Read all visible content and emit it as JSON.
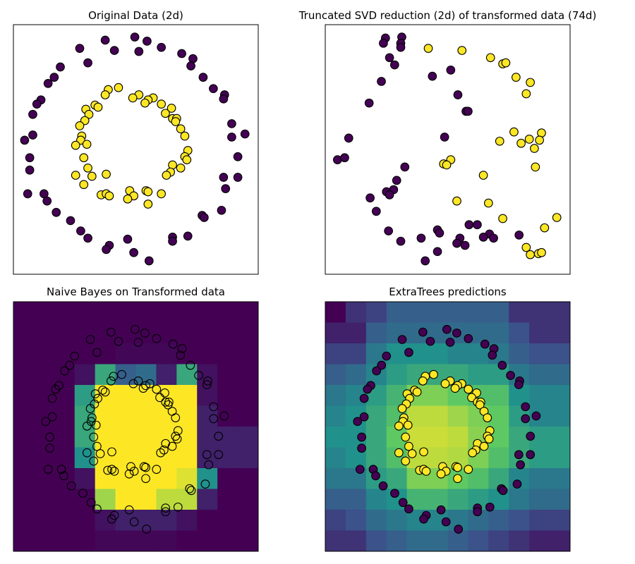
{
  "chart_data": [
    {
      "type": "scatter",
      "title": "Original Data (2d)",
      "xlim": [
        -1.2,
        1.2
      ],
      "ylim": [
        -1.21,
        1.21
      ],
      "grid": false,
      "ticks": false,
      "marker_style": "filled",
      "series": [
        {
          "name": "class 0",
          "color": "#440154",
          "points": [
            [
              -0.3,
              1.06
            ],
            [
              -0.01,
              1.09
            ],
            [
              0.11,
              1.05
            ],
            [
              0.25,
              0.99
            ],
            [
              -0.55,
              0.98
            ],
            [
              -0.21,
              0.96
            ],
            [
              0.03,
              0.95
            ],
            [
              0.45,
              0.93
            ],
            [
              0.56,
              0.88
            ],
            [
              0.54,
              0.81
            ],
            [
              -0.47,
              0.84
            ],
            [
              -0.74,
              0.8
            ],
            [
              -0.8,
              0.7
            ],
            [
              -0.86,
              0.64
            ],
            [
              0.66,
              0.7
            ],
            [
              0.76,
              0.59
            ],
            [
              0.87,
              0.53
            ],
            [
              0.86,
              0.49
            ],
            [
              -0.93,
              0.48
            ],
            [
              -0.97,
              0.44
            ],
            [
              -1.01,
              0.34
            ],
            [
              0.94,
              0.25
            ],
            [
              1.07,
              0.15
            ],
            [
              0.94,
              0.12
            ],
            [
              -1.01,
              0.14
            ],
            [
              -1.09,
              0.09
            ],
            [
              -1.04,
              -0.08
            ],
            [
              1.0,
              -0.07
            ],
            [
              -1.04,
              -0.2
            ],
            [
              0.86,
              -0.27
            ],
            [
              1.0,
              -0.27
            ],
            [
              0.88,
              -0.38
            ],
            [
              -1.06,
              -0.43
            ],
            [
              -0.9,
              -0.43
            ],
            [
              -0.87,
              -0.5
            ],
            [
              0.84,
              -0.59
            ],
            [
              -0.78,
              -0.61
            ],
            [
              0.65,
              -0.64
            ],
            [
              0.67,
              -0.66
            ],
            [
              -0.64,
              -0.69
            ],
            [
              -0.54,
              -0.79
            ],
            [
              -0.47,
              -0.86
            ],
            [
              0.51,
              -0.84
            ],
            [
              0.36,
              -0.85
            ],
            [
              0.36,
              -0.89
            ],
            [
              -0.08,
              -0.87
            ],
            [
              -0.26,
              -0.93
            ],
            [
              -0.29,
              -0.97
            ],
            [
              -0.02,
              -1.0
            ],
            [
              0.13,
              -1.08
            ]
          ]
        },
        {
          "name": "class 1",
          "color": "#fde725",
          "points": [
            [
              -0.17,
              0.6
            ],
            [
              -0.27,
              0.58
            ],
            [
              -0.3,
              0.53
            ],
            [
              0.03,
              0.53
            ],
            [
              -0.03,
              0.5
            ],
            [
              0.17,
              0.5
            ],
            [
              0.12,
              0.48
            ],
            [
              0.09,
              0.45
            ],
            [
              0.25,
              0.44
            ],
            [
              -0.4,
              0.43
            ],
            [
              -0.37,
              0.41
            ],
            [
              0.35,
              0.4
            ],
            [
              -0.49,
              0.39
            ],
            [
              -0.46,
              0.34
            ],
            [
              0.29,
              0.35
            ],
            [
              0.36,
              0.3
            ],
            [
              0.4,
              0.3
            ],
            [
              0.39,
              0.27
            ],
            [
              -0.5,
              0.28
            ],
            [
              -0.55,
              0.23
            ],
            [
              0.44,
              0.2
            ],
            [
              0.48,
              0.13
            ],
            [
              -0.53,
              0.13
            ],
            [
              -0.54,
              0.09
            ],
            [
              -0.48,
              0.05
            ],
            [
              -0.59,
              0.04
            ],
            [
              0.51,
              -0.01
            ],
            [
              0.48,
              -0.07
            ],
            [
              0.5,
              -0.1
            ],
            [
              -0.51,
              -0.08
            ],
            [
              0.36,
              -0.15
            ],
            [
              0.44,
              -0.18
            ],
            [
              -0.47,
              -0.18
            ],
            [
              0.34,
              -0.22
            ],
            [
              0.3,
              -0.25
            ],
            [
              -0.59,
              -0.25
            ],
            [
              -0.43,
              -0.26
            ],
            [
              -0.29,
              -0.24
            ],
            [
              -0.51,
              -0.34
            ],
            [
              -0.06,
              -0.4
            ],
            [
              0.1,
              -0.4
            ],
            [
              0.12,
              -0.41
            ],
            [
              0.25,
              -0.43
            ],
            [
              -0.34,
              -0.44
            ],
            [
              -0.29,
              -0.43
            ],
            [
              -0.26,
              -0.45
            ],
            [
              -0.02,
              -0.45
            ],
            [
              -0.08,
              -0.48
            ],
            [
              0.12,
              -0.53
            ]
          ]
        }
      ]
    },
    {
      "type": "scatter",
      "title": "Truncated SVD reduction (2d) of transformed data (74d)",
      "xlim": [
        0,
        2.4
      ],
      "ylim": [
        0,
        2.42
      ],
      "grid": false,
      "ticks": false,
      "marker_style": "filled",
      "series": [
        {
          "name": "class 0",
          "color": "#440154",
          "points": [
            [
              0.59,
              2.29
            ],
            [
              0.75,
              2.3
            ],
            [
              0.57,
              2.24
            ],
            [
              0.74,
              2.24
            ],
            [
              0.74,
              2.2
            ],
            [
              0.63,
              2.1
            ],
            [
              0.68,
              2.03
            ],
            [
              1.23,
              1.98
            ],
            [
              1.05,
              1.92
            ],
            [
              0.55,
              1.87
            ],
            [
              0.43,
              1.66
            ],
            [
              1.3,
              1.74
            ],
            [
              1.38,
              1.58
            ],
            [
              1.4,
              1.58
            ],
            [
              0.23,
              1.32
            ],
            [
              1.17,
              1.33
            ],
            [
              0.12,
              1.11
            ],
            [
              0.19,
              1.13
            ],
            [
              0.78,
              1.04
            ],
            [
              0.7,
              0.91
            ],
            [
              0.6,
              0.8
            ],
            [
              0.67,
              0.82
            ],
            [
              0.63,
              0.77
            ],
            [
              0.44,
              0.74
            ],
            [
              0.5,
              0.61
            ],
            [
              0.62,
              0.42
            ],
            [
              1.41,
              0.48
            ],
            [
              1.49,
              0.48
            ],
            [
              1.1,
              0.43
            ],
            [
              1.12,
              0.4
            ],
            [
              0.74,
              0.32
            ],
            [
              0.94,
              0.35
            ],
            [
              1.32,
              0.35
            ],
            [
              1.29,
              0.3
            ],
            [
              1.37,
              0.28
            ],
            [
              1.61,
              0.39
            ],
            [
              1.55,
              0.36
            ],
            [
              1.65,
              0.35
            ],
            [
              1.9,
              0.38
            ],
            [
              1.1,
              0.22
            ],
            [
              0.98,
              0.13
            ]
          ]
        },
        {
          "name": "class 1",
          "color": "#fde725",
          "points": [
            [
              1.01,
              2.19
            ],
            [
              1.34,
              2.17
            ],
            [
              1.62,
              2.1
            ],
            [
              1.74,
              2.04
            ],
            [
              1.77,
              2.05
            ],
            [
              1.87,
              1.91
            ],
            [
              2.01,
              1.86
            ],
            [
              1.97,
              1.75
            ],
            [
              1.85,
              1.38
            ],
            [
              2.12,
              1.37
            ],
            [
              1.71,
              1.29
            ],
            [
              2.0,
              1.31
            ],
            [
              2.1,
              1.3
            ],
            [
              1.92,
              1.27
            ],
            [
              2.05,
              1.22
            ],
            [
              1.16,
              1.07
            ],
            [
              1.23,
              1.11
            ],
            [
              1.19,
              1.06
            ],
            [
              2.06,
              1.04
            ],
            [
              1.55,
              0.96
            ],
            [
              1.29,
              0.71
            ],
            [
              1.6,
              0.69
            ],
            [
              1.74,
              0.54
            ],
            [
              2.27,
              0.55
            ],
            [
              2.15,
              0.45
            ],
            [
              1.97,
              0.26
            ],
            [
              2.01,
              0.19
            ],
            [
              2.09,
              0.2
            ],
            [
              2.12,
              0.21
            ]
          ]
        }
      ]
    },
    {
      "type": "heatmap",
      "title": "Naive Bayes on Transformed data",
      "xlim": [
        -1.48,
        1.48
      ],
      "ylim": [
        -1.32,
        1.39
      ],
      "colormap": "viridis",
      "marker_style": "hollow",
      "points_from": 0,
      "grid_values_top_to_bottom": [
        [
          0,
          0,
          0,
          0,
          0,
          0,
          0,
          0,
          0,
          0,
          0,
          0
        ],
        [
          0,
          0,
          0,
          0,
          0,
          0,
          0,
          0,
          0,
          0,
          0,
          0
        ],
        [
          0,
          0,
          0,
          0,
          0,
          0.02,
          0.02,
          0.02,
          0,
          0,
          0,
          0
        ],
        [
          0,
          0,
          0,
          0.05,
          0.6,
          0.3,
          0.35,
          0.1,
          0.6,
          0.05,
          0,
          0
        ],
        [
          0,
          0,
          0,
          0.55,
          1,
          1,
          1,
          1,
          1,
          0.05,
          0,
          0
        ],
        [
          0,
          0,
          0,
          0.6,
          1,
          1,
          1,
          1,
          1,
          0.1,
          0,
          0
        ],
        [
          0,
          0,
          0,
          0.6,
          1,
          1,
          1,
          1,
          1,
          0.1,
          0.1,
          0.1
        ],
        [
          0,
          0,
          0,
          0.5,
          1,
          1,
          1,
          1,
          1,
          0.1,
          0.1,
          0.1
        ],
        [
          0,
          0,
          0,
          0.05,
          1,
          1,
          1,
          1,
          0.95,
          0.5,
          0,
          0
        ],
        [
          0,
          0,
          0,
          0,
          0.85,
          1,
          1,
          0.9,
          0.9,
          0.1,
          0,
          0
        ],
        [
          0,
          0,
          0,
          0,
          0.05,
          0.1,
          0.1,
          0.1,
          0.05,
          0,
          0,
          0
        ],
        [
          0,
          0,
          0,
          0,
          0.02,
          0.02,
          0.02,
          0.02,
          0,
          0,
          0,
          0
        ]
      ]
    },
    {
      "type": "heatmap",
      "title": "ExtraTrees predictions",
      "xlim": [
        -1.48,
        1.48
      ],
      "ylim": [
        -1.32,
        1.39
      ],
      "colormap": "viridis",
      "marker_style": "filled",
      "points_from": 0,
      "grid_values_top_to_bottom": [
        [
          0,
          0.15,
          0.2,
          0.3,
          0.3,
          0.3,
          0.3,
          0.3,
          0.3,
          0.15,
          0.15,
          0.15
        ],
        [
          0.1,
          0.1,
          0.3,
          0.35,
          0.35,
          0.35,
          0.35,
          0.35,
          0.35,
          0.25,
          0.15,
          0.15
        ],
        [
          0.2,
          0.2,
          0.4,
          0.5,
          0.5,
          0.5,
          0.45,
          0.45,
          0.4,
          0.3,
          0.25,
          0.25
        ],
        [
          0.3,
          0.35,
          0.45,
          0.55,
          0.6,
          0.6,
          0.6,
          0.55,
          0.55,
          0.4,
          0.35,
          0.35
        ],
        [
          0.4,
          0.45,
          0.55,
          0.65,
          0.8,
          0.8,
          0.75,
          0.7,
          0.7,
          0.5,
          0.45,
          0.45
        ],
        [
          0.45,
          0.5,
          0.6,
          0.7,
          0.9,
          0.9,
          0.85,
          0.8,
          0.75,
          0.55,
          0.45,
          0.45
        ],
        [
          0.5,
          0.5,
          0.6,
          0.75,
          0.92,
          0.92,
          0.9,
          0.82,
          0.75,
          0.6,
          0.55,
          0.55
        ],
        [
          0.45,
          0.5,
          0.6,
          0.7,
          0.9,
          0.9,
          0.88,
          0.8,
          0.7,
          0.6,
          0.55,
          0.55
        ],
        [
          0.4,
          0.4,
          0.55,
          0.6,
          0.8,
          0.8,
          0.75,
          0.7,
          0.6,
          0.45,
          0.4,
          0.4
        ],
        [
          0.3,
          0.3,
          0.45,
          0.5,
          0.65,
          0.65,
          0.6,
          0.55,
          0.5,
          0.4,
          0.35,
          0.35
        ],
        [
          0.2,
          0.25,
          0.35,
          0.4,
          0.45,
          0.45,
          0.4,
          0.35,
          0.3,
          0.25,
          0.2,
          0.2
        ],
        [
          0.15,
          0.15,
          0.25,
          0.3,
          0.35,
          0.35,
          0.3,
          0.25,
          0.2,
          0.15,
          0.1,
          0.1
        ]
      ]
    }
  ]
}
